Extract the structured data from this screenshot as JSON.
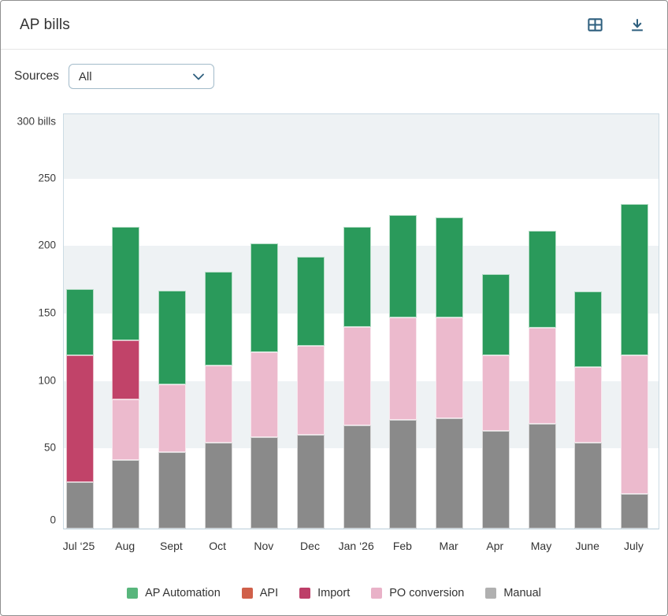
{
  "header": {
    "title": "AP bills",
    "table_view_icon": "table-icon",
    "download_icon": "download-icon",
    "icon_color": "#2e5f7e"
  },
  "controls": {
    "sources_label": "Sources",
    "selected_source": "All"
  },
  "chart_data": {
    "type": "bar",
    "stacked": true,
    "title": "AP bills",
    "unit": "bills",
    "ylim": [
      0,
      300
    ],
    "ytick_values": [
      300,
      250,
      200,
      150,
      100,
      50,
      0
    ],
    "ytick_labels": [
      "300 bills",
      "250",
      "200",
      "150",
      "100",
      "50",
      "0"
    ],
    "grid_bands": [
      [
        250,
        300
      ],
      [
        150,
        200
      ],
      [
        50,
        100
      ]
    ],
    "band_color": "#eef2f4",
    "legend_position": "bottom",
    "categories": [
      "Jul ‘25",
      "Aug",
      "Sept",
      "Oct",
      "Nov",
      "Dec",
      "Jan ‘26",
      "Feb",
      "Mar",
      "Apr",
      "May",
      "June",
      "July"
    ],
    "stack_order_bottom_to_top": [
      "Manual",
      "PO conversion",
      "Import",
      "API",
      "AP Automation"
    ],
    "series": [
      {
        "name": "AP Automation",
        "bar_color": "#2a9a5b",
        "legend_color": "#58b67c",
        "values": [
          49,
          84,
          70,
          70,
          81,
          66,
          74,
          76,
          74,
          60,
          72,
          56,
          112
        ]
      },
      {
        "name": "API",
        "bar_color": "#d0604a",
        "legend_color": "#d0604a",
        "values": [
          0,
          0,
          0,
          0,
          0,
          0,
          0,
          0,
          0,
          0,
          0,
          0,
          0
        ]
      },
      {
        "name": "Import",
        "bar_color": "#c14369",
        "legend_color": "#bd3e68",
        "values": [
          94,
          44,
          0,
          0,
          0,
          0,
          0,
          0,
          0,
          0,
          0,
          0,
          0
        ]
      },
      {
        "name": "PO conversion",
        "bar_color": "#ecbacd",
        "legend_color": "#e9b2c8",
        "values": [
          0,
          45,
          50,
          57,
          63,
          66,
          73,
          76,
          75,
          56,
          71,
          56,
          103
        ]
      },
      {
        "name": "Manual",
        "bar_color": "#8a8a8a",
        "legend_color": "#b0b0b0",
        "values": [
          24,
          40,
          46,
          53,
          57,
          59,
          66,
          70,
          71,
          62,
          67,
          53,
          15
        ]
      }
    ],
    "totals": [
      167,
      213,
      166,
      180,
      201,
      191,
      213,
      222,
      220,
      178,
      210,
      165,
      230
    ]
  }
}
